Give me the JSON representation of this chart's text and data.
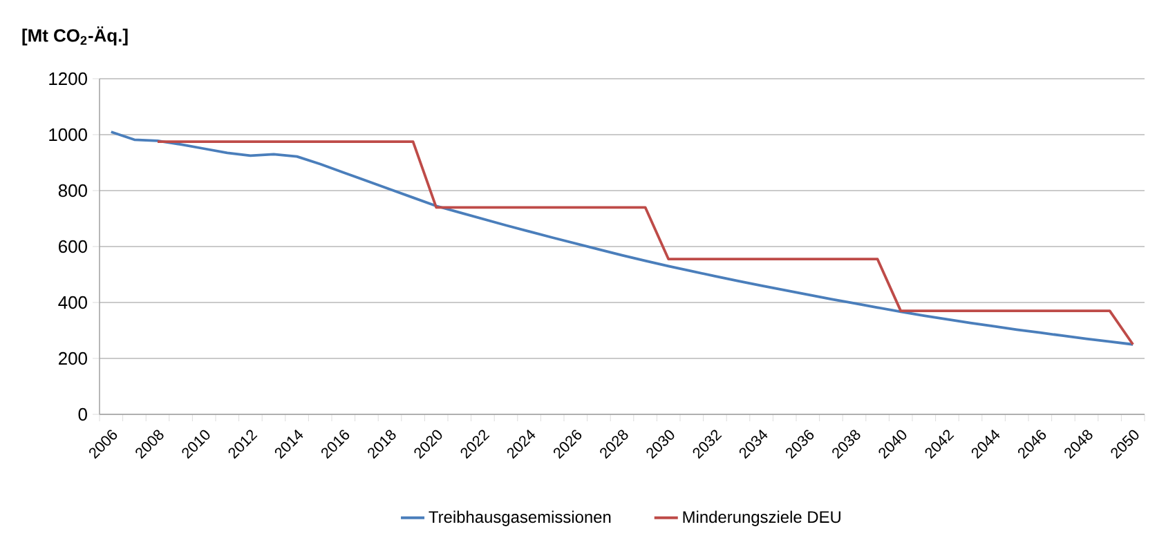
{
  "chart_data": {
    "type": "line",
    "ylabel": "[Mt CO$_{2}$-Äq.]",
    "categories": [
      "2006",
      null,
      "2008",
      null,
      "2010",
      null,
      "2012",
      null,
      "2014",
      null,
      "2016",
      null,
      "2018",
      null,
      "2020",
      null,
      "2022",
      null,
      "2024",
      null,
      "2026",
      null,
      "2028",
      null,
      "2030",
      null,
      "2032",
      null,
      "2034",
      null,
      "2036",
      null,
      "2038",
      null,
      "2040",
      null,
      "2042",
      null,
      "2044",
      null,
      "2046",
      null,
      "2048",
      null,
      "2050"
    ],
    "series": [
      {
        "name": "Treibhausgasemissionen",
        "color": "#4a7ebb",
        "values": [
          1010,
          982,
          978,
          965,
          950,
          935,
          925,
          930,
          922,
          895,
          865,
          835,
          805,
          775,
          745,
          722,
          699,
          676,
          654,
          632,
          611,
          590,
          569,
          549,
          530,
          512,
          494,
          477,
          460,
          444,
          428,
          412,
          397,
          382,
          367,
          353,
          340,
          327,
          315,
          303,
          292,
          281,
          270,
          260,
          250
        ]
      },
      {
        "name": "Minderungsziele DEU",
        "color": "#be4b48",
        "values": [
          null,
          null,
          975,
          975,
          975,
          975,
          975,
          975,
          975,
          975,
          975,
          975,
          975,
          975,
          740,
          740,
          740,
          740,
          740,
          740,
          740,
          740,
          740,
          740,
          555,
          555,
          555,
          555,
          555,
          555,
          555,
          555,
          555,
          555,
          370,
          370,
          370,
          370,
          370,
          370,
          370,
          370,
          370,
          370,
          250
        ]
      }
    ],
    "ylim": [
      0,
      1200
    ],
    "yticks": [
      0,
      200,
      400,
      600,
      800,
      1000,
      1200
    ],
    "grid": "y",
    "legend": "bottom",
    "marker": "none",
    "line_style": "solid"
  }
}
